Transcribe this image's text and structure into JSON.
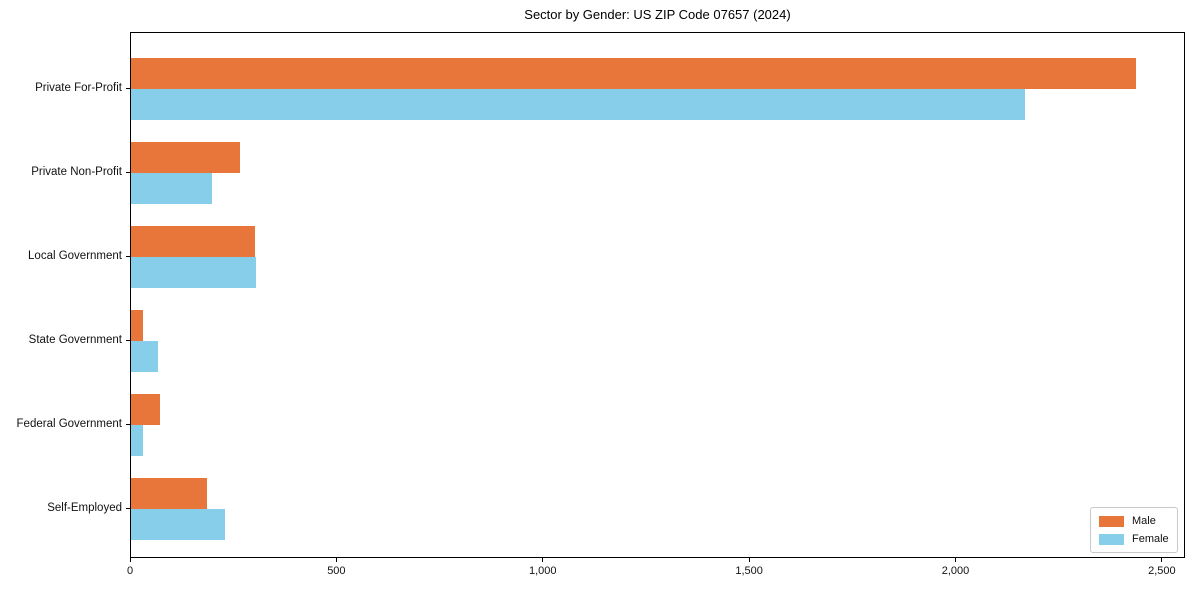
{
  "chart_data": {
    "type": "bar",
    "orientation": "horizontal",
    "title": "Sector by Gender: US ZIP Code 07657 (2024)",
    "categories": [
      "Private For-Profit",
      "Private Non-Profit",
      "Local Government",
      "State Government",
      "Federal Government",
      "Self-Employed"
    ],
    "series": [
      {
        "name": "Male",
        "color": "#E8763B",
        "values": [
          2434,
          263,
          300,
          30,
          71,
          183
        ]
      },
      {
        "name": "Female",
        "color": "#87CEEB",
        "values": [
          2166,
          197,
          302,
          66,
          30,
          227
        ]
      }
    ],
    "xlabel": "",
    "ylabel": "",
    "xlim": [
      0,
      2556
    ],
    "x_ticks": [
      "0",
      "500",
      "1,000",
      "1,500",
      "2,000",
      "2,500"
    ],
    "x_tick_values": [
      0,
      500,
      1000,
      1500,
      2000,
      2500
    ],
    "legend": {
      "position": "lower-right",
      "entries": [
        "Male",
        "Female"
      ]
    },
    "grid": false,
    "colors": {
      "male_bar": "#E8763B",
      "female_bar": "#87CEEB",
      "axis": "#000000",
      "text": "#111111",
      "legend_border": "#C9C9C9",
      "background": "#FFFFFF"
    }
  }
}
